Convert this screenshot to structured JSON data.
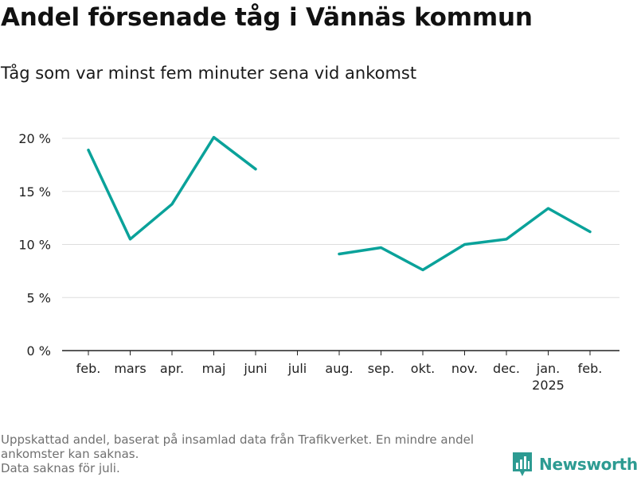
{
  "title": "Andel försenade tåg i Vännäs kommun",
  "subtitle": "Tåg som var minst fem minuter sena vid ankomst",
  "footnote": {
    "lines": [
      "Uppskattad andel, baserat på insamlad data från Trafikverket. En mindre andel",
      "ankomster kan saknas.",
      "Data saknas för juli."
    ]
  },
  "brand": {
    "name": "Newsworthy",
    "icon": "bar-chart-speech-bubble-icon",
    "color": "#2d9b92"
  },
  "colors": {
    "series": "#0aa29a",
    "grid": "#dddddd",
    "axis": "#222222"
  },
  "chart_data": {
    "type": "line",
    "title": "",
    "xlabel": "",
    "ylabel": "",
    "categories": [
      "feb.",
      "mars",
      "apr.",
      "maj",
      "juni",
      "juli",
      "aug.",
      "sep.",
      "okt.",
      "nov.",
      "dec.",
      "jan.",
      "feb."
    ],
    "category_sublabels": [
      "",
      "",
      "",
      "",
      "",
      "",
      "",
      "",
      "",
      "",
      "",
      "2025",
      ""
    ],
    "series": [
      {
        "values": [
          18.9,
          10.5,
          13.8,
          20.1,
          17.1,
          null,
          9.1,
          9.7,
          7.6,
          10.0,
          10.5,
          13.4,
          11.2
        ]
      }
    ],
    "ylim": [
      0,
      20
    ],
    "yticks": [
      0,
      5,
      10,
      15,
      20
    ],
    "ytick_labels": [
      "0 %",
      "5 %",
      "10 %",
      "15 %",
      "20 %"
    ],
    "grid": true,
    "legend": "none"
  }
}
